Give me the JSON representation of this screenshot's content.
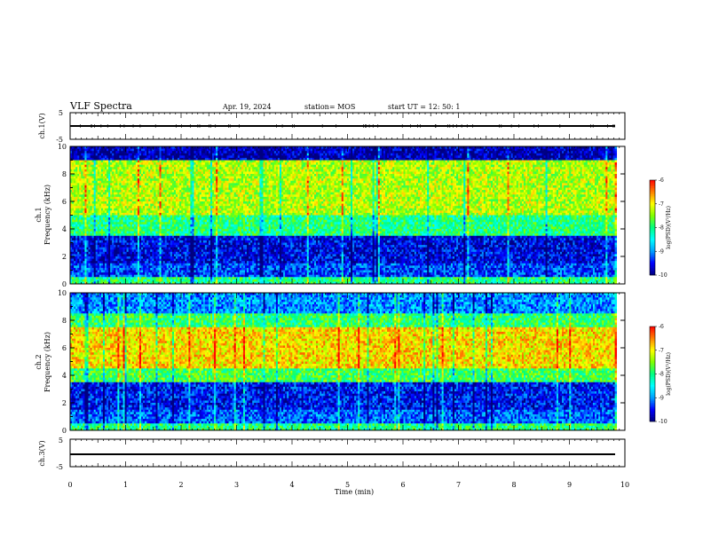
{
  "header": {
    "title": "VLF Spectra",
    "date": "Apr. 19, 2024",
    "station": "station= MOS",
    "start": "start  UT  =    12: 50: 1"
  },
  "chart_data": [
    {
      "type": "line",
      "panel": "ch1-waveform",
      "ylabel": "ch.1(V)",
      "yticks": [
        "5",
        "-5"
      ],
      "ylim": [
        -5,
        5
      ],
      "xlim": [
        0,
        10
      ],
      "series": [
        {
          "values_summary": "near 0 V flat trace across 0 to 9.85 min with small spikes"
        }
      ]
    },
    {
      "type": "heatmap",
      "panel": "ch1-spectrogram",
      "ylabel": "ch.1\nFrequency (kHz)",
      "ylim": [
        0,
        10
      ],
      "yticks": [
        "0",
        "2",
        "4",
        "6",
        "8",
        "10"
      ],
      "xlim": [
        0,
        10
      ],
      "data_extent_min": 9.85,
      "colorbar": {
        "label": "log(PSD)(V²/Hz)",
        "ticks": [
          "-6",
          "-7",
          "-8",
          "-9",
          "-10"
        ],
        "range": [
          -10,
          -6
        ]
      },
      "band_profile": [
        {
          "freq_khz": [
            0,
            0.5
          ],
          "level": -8.0
        },
        {
          "freq_khz": [
            0.5,
            1.5
          ],
          "level": -9.3
        },
        {
          "freq_khz": [
            1.5,
            3.5
          ],
          "level": -9.6
        },
        {
          "freq_khz": [
            3.5,
            5.0
          ],
          "level": -8.0
        },
        {
          "freq_khz": [
            5.0,
            9.0
          ],
          "level": -7.3
        },
        {
          "freq_khz": [
            9.0,
            10.0
          ],
          "level": -9.8
        }
      ]
    },
    {
      "type": "heatmap",
      "panel": "ch2-spectrogram",
      "ylabel": "ch.2\nFrequency (kHz)",
      "ylim": [
        0,
        10
      ],
      "yticks": [
        "0",
        "2",
        "4",
        "6",
        "8",
        "10"
      ],
      "xlim": [
        0,
        10
      ],
      "data_extent_min": 9.85,
      "colorbar": {
        "label": "log(PSD)(V²/Hz)",
        "ticks": [
          "-6",
          "-7",
          "-8",
          "-9",
          "-10"
        ],
        "range": [
          -10,
          -6
        ]
      },
      "band_profile": [
        {
          "freq_khz": [
            0,
            0.5
          ],
          "level": -8.0
        },
        {
          "freq_khz": [
            0.5,
            1.5
          ],
          "level": -9.2
        },
        {
          "freq_khz": [
            1.5,
            3.5
          ],
          "level": -9.5
        },
        {
          "freq_khz": [
            3.5,
            4.5
          ],
          "level": -7.8
        },
        {
          "freq_khz": [
            4.5,
            7.5
          ],
          "level": -6.9
        },
        {
          "freq_khz": [
            7.5,
            8.5
          ],
          "level": -7.9
        },
        {
          "freq_khz": [
            8.5,
            10.0
          ],
          "level": -9.0
        }
      ]
    },
    {
      "type": "line",
      "panel": "ch3-waveform",
      "ylabel": "ch.3(V)",
      "yticks": [
        "5",
        "-5"
      ],
      "ylim": [
        -5,
        5
      ],
      "xlim": [
        0,
        10
      ],
      "series": [
        {
          "values_summary": "near 0 V flat trace across 0 to 9.85 min"
        }
      ]
    }
  ],
  "xaxis": {
    "label": "Time  (min)",
    "ticks": [
      "0",
      "1",
      "2",
      "3",
      "4",
      "5",
      "6",
      "7",
      "8",
      "9",
      "10"
    ]
  },
  "colors": {
    "colormap": [
      "#000080",
      "#0000ff",
      "#00a0ff",
      "#00ffff",
      "#00ff80",
      "#80ff00",
      "#ffff00",
      "#ff8000",
      "#ff0000",
      "#ffffff"
    ]
  }
}
